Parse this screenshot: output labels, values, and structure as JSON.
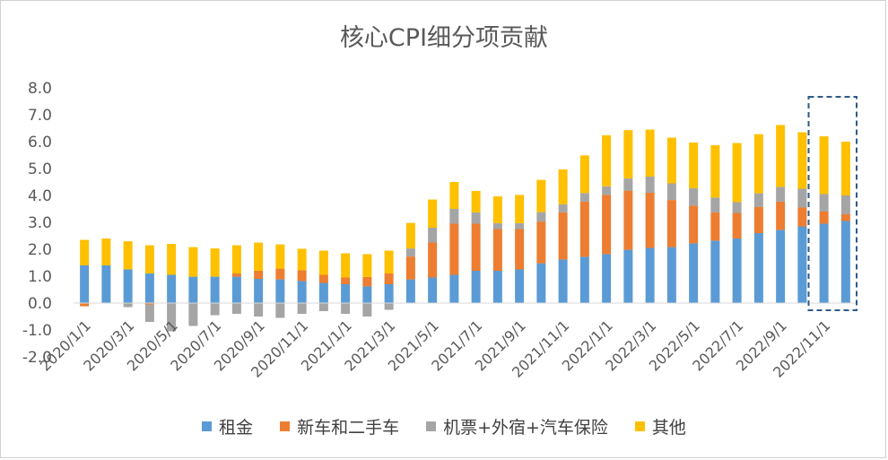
{
  "chart_data": {
    "type": "bar",
    "stacked": true,
    "title": "核心CPI细分项贡献",
    "xlabel": "",
    "ylabel": "",
    "ylim": [
      -2.0,
      8.0
    ],
    "yticks": [
      "-2.0",
      "-1.0",
      "0.0",
      "1.0",
      "2.0",
      "3.0",
      "4.0",
      "5.0",
      "6.0",
      "7.0",
      "8.0"
    ],
    "grid": false,
    "legend_position": "bottom",
    "highlight_box": "last two months (2022/11, 2022/12) outlined with dashed box",
    "categories": [
      "2020/1/1",
      "2020/2/1",
      "2020/3/1",
      "2020/4/1",
      "2020/5/1",
      "2020/6/1",
      "2020/7/1",
      "2020/8/1",
      "2020/9/1",
      "2020/10/1",
      "2020/11/1",
      "2020/12/1",
      "2021/1/1",
      "2021/2/1",
      "2021/3/1",
      "2021/4/1",
      "2021/5/1",
      "2021/6/1",
      "2021/7/1",
      "2021/8/1",
      "2021/9/1",
      "2021/10/1",
      "2021/11/1",
      "2021/12/1",
      "2022/1/1",
      "2022/2/1",
      "2022/3/1",
      "2022/4/1",
      "2022/5/1",
      "2022/6/1",
      "2022/7/1",
      "2022/8/1",
      "2022/9/1",
      "2022/10/1",
      "2022/11/1",
      "2022/12/1"
    ],
    "tick_labels": [
      "2020/1/1",
      "2020/3/1",
      "2020/5/1",
      "2020/7/1",
      "2020/9/1",
      "2020/11/1",
      "2021/1/1",
      "2021/3/1",
      "2021/5/1",
      "2021/7/1",
      "2021/9/1",
      "2021/11/1",
      "2022/1/1",
      "2022/3/1",
      "2022/5/1",
      "2022/7/1",
      "2022/9/1",
      "2022/11/1"
    ],
    "series": [
      {
        "name": "租金",
        "color": "#5b9bd5",
        "values": [
          1.4,
          1.4,
          1.25,
          1.1,
          1.05,
          0.98,
          0.98,
          0.98,
          0.9,
          0.88,
          0.82,
          0.75,
          0.7,
          0.62,
          0.7,
          0.88,
          0.95,
          1.05,
          1.2,
          1.2,
          1.25,
          1.48,
          1.62,
          1.72,
          1.82,
          1.98,
          2.05,
          2.08,
          2.22,
          2.32,
          2.4,
          2.6,
          2.72,
          2.85,
          2.95,
          3.05
        ]
      },
      {
        "name": "新车和二手车",
        "color": "#ed7d31",
        "values": [
          -0.12,
          0.0,
          0.0,
          -0.05,
          0.0,
          0.0,
          0.0,
          0.12,
          0.3,
          0.4,
          0.4,
          0.3,
          0.25,
          0.35,
          0.4,
          0.85,
          1.3,
          1.9,
          1.75,
          1.55,
          1.5,
          1.55,
          1.75,
          2.05,
          2.2,
          2.2,
          2.05,
          1.75,
          1.4,
          1.05,
          0.95,
          0.98,
          1.05,
          0.7,
          0.45,
          0.25
        ]
      },
      {
        "name": "机票+外宿+汽车保险",
        "color": "#a5a5a5",
        "values": [
          0.0,
          0.0,
          -0.15,
          -0.65,
          -1.05,
          -0.85,
          -0.45,
          -0.4,
          -0.5,
          -0.55,
          -0.4,
          -0.3,
          -0.4,
          -0.5,
          -0.25,
          0.3,
          0.55,
          0.55,
          0.42,
          0.22,
          0.22,
          0.35,
          0.3,
          0.32,
          0.32,
          0.45,
          0.6,
          0.62,
          0.65,
          0.55,
          0.4,
          0.5,
          0.55,
          0.7,
          0.65,
          0.7
        ]
      },
      {
        "name": "其他",
        "color": "#ffc000",
        "values": [
          0.95,
          1.0,
          1.05,
          1.05,
          1.15,
          1.1,
          1.05,
          1.05,
          1.05,
          0.9,
          0.8,
          0.9,
          0.9,
          0.85,
          0.85,
          0.95,
          1.05,
          1.0,
          0.8,
          1.0,
          1.05,
          1.2,
          1.3,
          1.4,
          1.9,
          1.8,
          1.75,
          1.7,
          1.7,
          1.95,
          2.2,
          2.2,
          2.3,
          2.1,
          2.15,
          2.0
        ]
      }
    ]
  }
}
